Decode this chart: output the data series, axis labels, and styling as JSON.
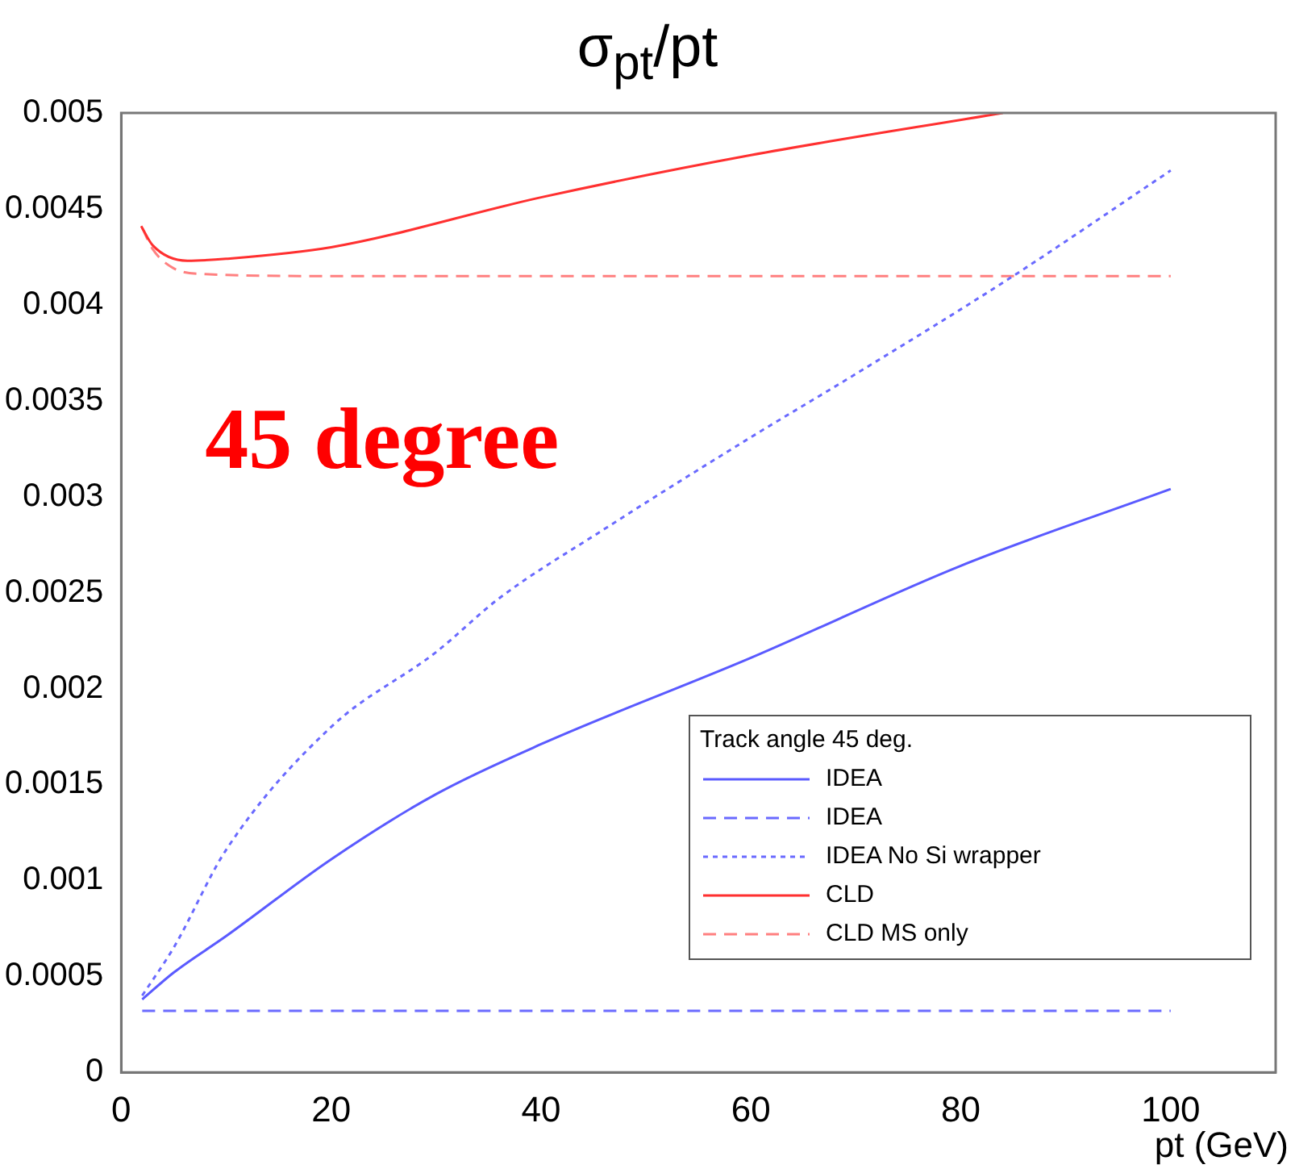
{
  "chart_data": {
    "type": "line",
    "title": "σ$_{pt}$/pt",
    "xlabel": "pt (GeV)",
    "legend_title": "Track angle 45 deg.",
    "annotations": [
      "45 degree"
    ],
    "xlim": [
      0,
      110
    ],
    "xticks": [
      0,
      20,
      40,
      60,
      80,
      100
    ],
    "ylim": [
      0,
      0.005
    ],
    "yticks": [
      0,
      0.0005,
      0.001,
      0.0015,
      0.002,
      0.0025,
      0.003,
      0.0035,
      0.004,
      0.0045,
      0.005
    ],
    "grid": false,
    "legend": "bottom right",
    "marker": "none",
    "series": [
      {
        "name": "IDEA",
        "color": "#5a5aff",
        "line_style": "solid",
        "x": [
          2,
          5,
          10,
          20,
          30,
          40,
          60,
          80,
          100
        ],
        "values": [
          0.00038,
          0.00052,
          0.00071,
          0.00111,
          0.00145,
          0.00171,
          0.00216,
          0.00264,
          0.00304
        ]
      },
      {
        "name": "IDEA",
        "color": "#6a6aff",
        "line_style": "dashed",
        "x": [
          2,
          100
        ],
        "values": [
          0.00032,
          0.00032
        ]
      },
      {
        "name": "IDEA No Si wrapper",
        "color": "#6a6aff",
        "line_style": "dotted",
        "x": [
          2,
          5,
          10,
          20,
          30,
          36,
          46,
          60,
          70,
          84.7,
          100
        ],
        "values": [
          0.0004,
          0.00065,
          0.00116,
          0.0018,
          0.00219,
          0.00247,
          0.00283,
          0.00331,
          0.00364,
          0.00414,
          0.0047
        ]
      },
      {
        "name": "CLD",
        "color": "#ff3030",
        "line_style": "solid",
        "x": [
          1.9,
          3,
          6.3,
          10,
          20,
          40,
          60,
          84
        ],
        "values": [
          0.00441,
          0.00431,
          0.00423,
          0.00424,
          0.0043,
          0.00456,
          0.00478,
          0.005
        ]
      },
      {
        "name": "CLD MS only",
        "color": "#ff8080",
        "line_style": "dashed",
        "x": [
          2,
          3,
          5,
          8,
          20,
          100
        ],
        "values": [
          0.0044,
          0.00429,
          0.00419,
          0.00416,
          0.00415,
          0.00415
        ]
      }
    ]
  }
}
